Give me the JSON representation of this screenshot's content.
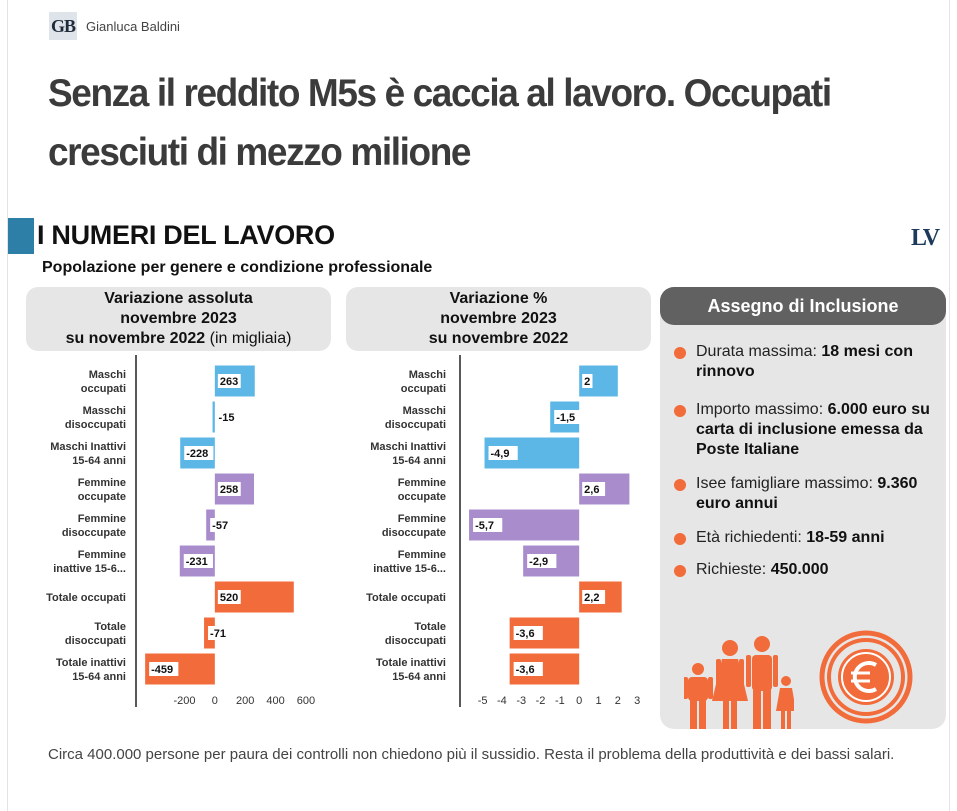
{
  "author": {
    "logo": "GB",
    "name": "Gianluca Baldini"
  },
  "headline": "Senza il reddito M5s è caccia al lavoro. Occupati cresciuti di mezzo milione",
  "section_title": "I NUMERI DEL LAVORO",
  "brand_logo": "LV",
  "subtitle": "Popolazione per genere e condizione professionale",
  "chart_titles": {
    "abs_line1": "Variazione assoluta",
    "abs_line2": "novembre 2023",
    "abs_line3": "su novembre 2022",
    "abs_unit": "(in migliaia)",
    "pct_line1": "Variazione %",
    "pct_line2": "novembre 2023",
    "pct_line3": "su novembre 2022"
  },
  "colors": {
    "male": "#5cb7e6",
    "female": "#a98ccc",
    "total": "#f26b3a"
  },
  "chart_data": [
    {
      "type": "bar",
      "orientation": "horizontal",
      "title": "Variazione assoluta novembre 2023 su novembre 2022 (in migliaia)",
      "categories": [
        [
          "Maschi",
          "occupati"
        ],
        [
          "Masschi",
          "disoccupati"
        ],
        [
          "Maschi Inattivi",
          "15-64 anni"
        ],
        [
          "Femmine",
          "occupate"
        ],
        [
          "Femmine",
          "disoccupate"
        ],
        [
          "Femmine",
          "inattive 15-6..."
        ],
        [
          "Totale occupati"
        ],
        [
          "Totale",
          "disoccupati"
        ],
        [
          "Totale inattivi",
          "15-64 anni"
        ]
      ],
      "values": [
        263,
        -15,
        -228,
        258,
        -57,
        -231,
        520,
        -71,
        -459
      ],
      "labels": [
        "263",
        "-15",
        "-228",
        "258",
        "-57",
        "-231",
        "520",
        "-71",
        "-459"
      ],
      "groups": [
        "male",
        "male",
        "male",
        "female",
        "female",
        "female",
        "total",
        "total",
        "total"
      ],
      "xlim": [
        -460,
        640
      ],
      "ticks": [
        -200,
        0,
        200,
        400,
        600
      ]
    },
    {
      "type": "bar",
      "orientation": "horizontal",
      "title": "Variazione % novembre 2023 su novembre 2022",
      "categories": [
        [
          "Maschi",
          "occupati"
        ],
        [
          "Masschi",
          "disoccupati"
        ],
        [
          "Maschi Inattivi",
          "15-64 anni"
        ],
        [
          "Femmine",
          "occupate"
        ],
        [
          "Femmine",
          "disoccupate"
        ],
        [
          "Femmine",
          "inattive 15-6..."
        ],
        [
          "Totale occupati"
        ],
        [
          "Totale",
          "disoccupati"
        ],
        [
          "Totale inattivi",
          "15-64 anni"
        ]
      ],
      "values": [
        2,
        -1.5,
        -4.9,
        2.6,
        -5.7,
        -2.9,
        2.2,
        -3.6,
        -3.6
      ],
      "labels": [
        "2",
        "-1,5",
        "-4,9",
        "2,6",
        "-5,7",
        "-2,9",
        "2,2",
        "-3,6",
        "-3,6"
      ],
      "groups": [
        "male",
        "male",
        "male",
        "female",
        "female",
        "female",
        "total",
        "total",
        "total"
      ],
      "xlim": [
        -5.6,
        3.2
      ],
      "ticks": [
        -5,
        -4,
        -3,
        -2,
        -1,
        0,
        1,
        2,
        3
      ]
    }
  ],
  "panel": {
    "title": "Assegno di Inclusione",
    "items": [
      {
        "label": "Durata massima: ",
        "value": "18 mesi con rinnovo"
      },
      {
        "label": "Importo massimo: ",
        "value": "6.000 euro su carta di inclusione emessa da Poste Italiane"
      },
      {
        "label": "Isee famigliare massimo: ",
        "value": "9.360 euro annui"
      },
      {
        "label": "Età richiedenti: ",
        "value": "18-59 anni"
      },
      {
        "label": "Richieste: ",
        "value": "450.000"
      }
    ],
    "icons": [
      "family-icon",
      "euro-coin-icon"
    ]
  },
  "caption": "Circa 400.000 persone per paura dei controlli non chiedono più il sussidio. Resta il problema della produttività e dei bassi salari."
}
